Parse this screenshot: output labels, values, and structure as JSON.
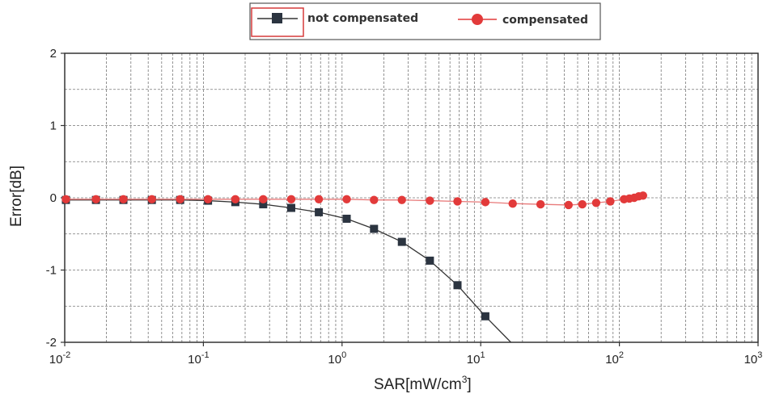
{
  "chart_data": {
    "type": "line",
    "xscale": "log",
    "xlim": [
      0.01,
      1000
    ],
    "ylim": [
      -2,
      2
    ],
    "xlabel": {
      "main": "SAR[mW/cm",
      "sup": "3",
      "tail": "]"
    },
    "ylabel": "Error[dB]",
    "grid": true,
    "legend_position": "top-center",
    "x_ticks": [
      {
        "value": 0.01,
        "base": "10",
        "exp": "-2"
      },
      {
        "value": 0.1,
        "base": "10",
        "exp": "-1"
      },
      {
        "value": 1,
        "base": "10",
        "exp": "0"
      },
      {
        "value": 10,
        "base": "10",
        "exp": "1"
      },
      {
        "value": 100,
        "base": "10",
        "exp": "2"
      },
      {
        "value": 1000,
        "base": "10",
        "exp": "3"
      }
    ],
    "y_ticks": [
      {
        "value": 2,
        "label": "2"
      },
      {
        "value": 1,
        "label": "1"
      },
      {
        "value": 0,
        "label": "0"
      },
      {
        "value": -1,
        "label": "-1"
      },
      {
        "value": -2,
        "label": "-2"
      }
    ],
    "series": [
      {
        "name": "not compensated",
        "marker": "square",
        "color": "#2b3440",
        "line_color": "#333333",
        "x": [
          0.0102,
          0.0168,
          0.0265,
          0.0425,
          0.068,
          0.108,
          0.17,
          0.27,
          0.43,
          0.68,
          1.08,
          1.7,
          2.7,
          4.3,
          6.8,
          10.8
        ],
        "y": [
          -0.03,
          -0.03,
          -0.03,
          -0.03,
          -0.03,
          -0.04,
          -0.06,
          -0.09,
          -0.14,
          -0.2,
          -0.29,
          -0.43,
          -0.61,
          -0.87,
          -1.21,
          -1.64
        ],
        "tail": {
          "x": 16.5,
          "y": -2.0
        }
      },
      {
        "name": "compensated",
        "marker": "circle",
        "color": "#e23a3a",
        "line_color": "#e87a7a",
        "x": [
          0.0102,
          0.0168,
          0.0265,
          0.0425,
          0.068,
          0.108,
          0.17,
          0.27,
          0.43,
          0.68,
          1.08,
          1.7,
          2.7,
          4.3,
          6.8,
          10.8,
          17,
          27,
          43,
          54,
          68,
          86,
          108,
          118,
          128,
          138,
          148
        ],
        "y": [
          -0.02,
          -0.02,
          -0.02,
          -0.02,
          -0.02,
          -0.02,
          -0.02,
          -0.02,
          -0.02,
          -0.02,
          -0.02,
          -0.03,
          -0.03,
          -0.04,
          -0.05,
          -0.06,
          -0.08,
          -0.09,
          -0.1,
          -0.09,
          -0.07,
          -0.05,
          -0.02,
          -0.01,
          0.0,
          0.02,
          0.03
        ]
      }
    ]
  }
}
